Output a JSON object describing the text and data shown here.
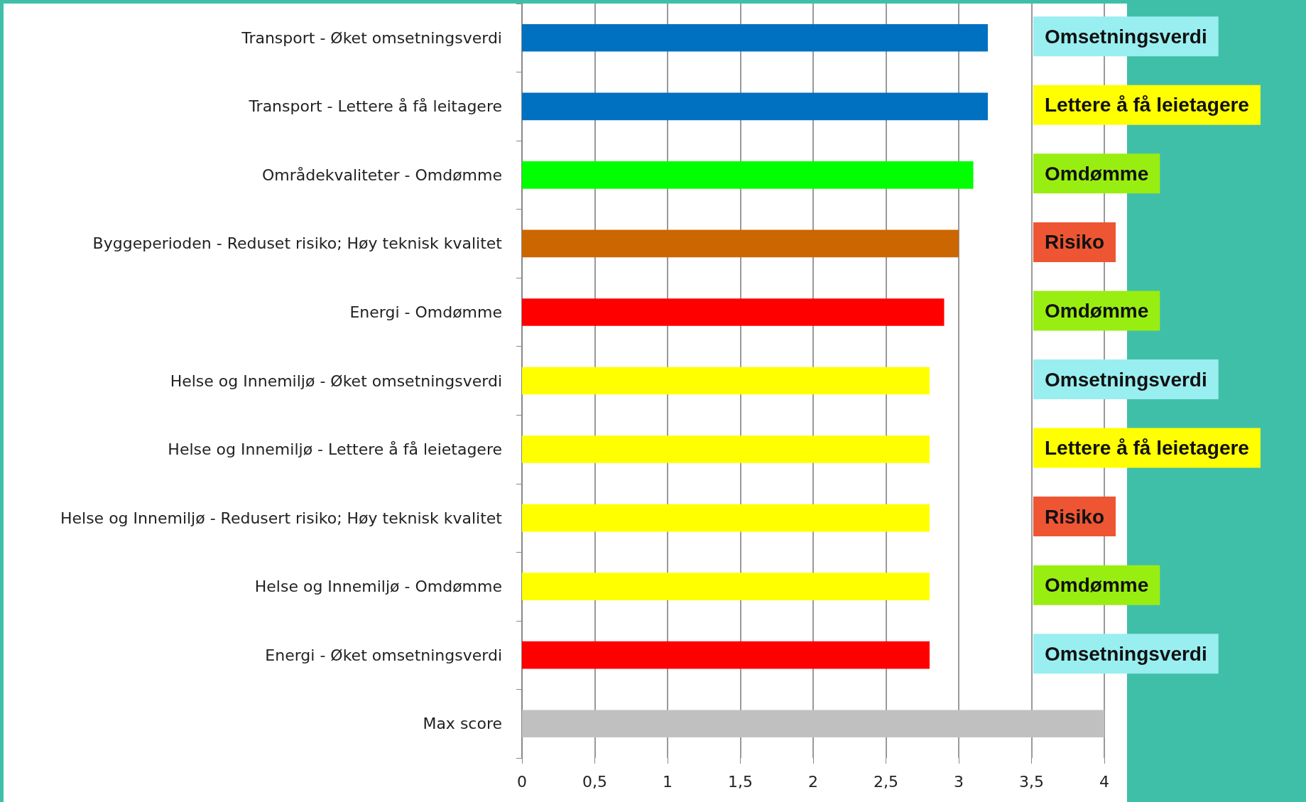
{
  "chart_data": {
    "type": "bar",
    "orientation": "horizontal",
    "categories": [
      "Transport - Øket omsetningsverdi",
      "Transport - Lettere å få leitagere",
      "Områdekvaliteter - Omdømme",
      "Byggeperioden - Reduset risiko; Høy teknisk kvalitet",
      "Energi - Omdømme",
      "Helse og Innemiljø - Øket omsetningsverdi",
      "Helse og Innemiljø - Lettere å få leietagere",
      "Helse og Innemiljø - Redusert risiko; Høy teknisk kvalitet",
      "Helse og Innemiljø - Omdømme",
      "Energi - Øket omsetningsverdi",
      "Max score"
    ],
    "values": [
      3.2,
      3.2,
      3.1,
      3.0,
      2.9,
      2.8,
      2.8,
      2.8,
      2.8,
      2.8,
      4
    ],
    "colors": [
      "#0070c0",
      "#0070c0",
      "#00ff00",
      "#cc6600",
      "#ff0000",
      "#ffff00",
      "#ffff00",
      "#ffff00",
      "#ffff00",
      "#ff0000",
      "#c0c0c0"
    ],
    "xlim": [
      0,
      4
    ],
    "xticks": [
      0,
      {
        "value": 0.5,
        "label": "0,5"
      },
      1,
      {
        "value": 1.5,
        "label": "1,5"
      },
      2,
      {
        "value": 2.5,
        "label": "2,5"
      },
      3,
      {
        "value": 3.5,
        "label": "3,5"
      },
      4
    ],
    "grid": "x",
    "annotations": [
      "Omsetningsverdi",
      "Lettere å få leietagere",
      "Omdømme",
      "Risiko",
      "Omdømme",
      "Omsetningsverdi",
      "Lettere å få leietagere",
      "Risiko",
      "Omdømme",
      "Omsetningsverdi"
    ]
  }
}
